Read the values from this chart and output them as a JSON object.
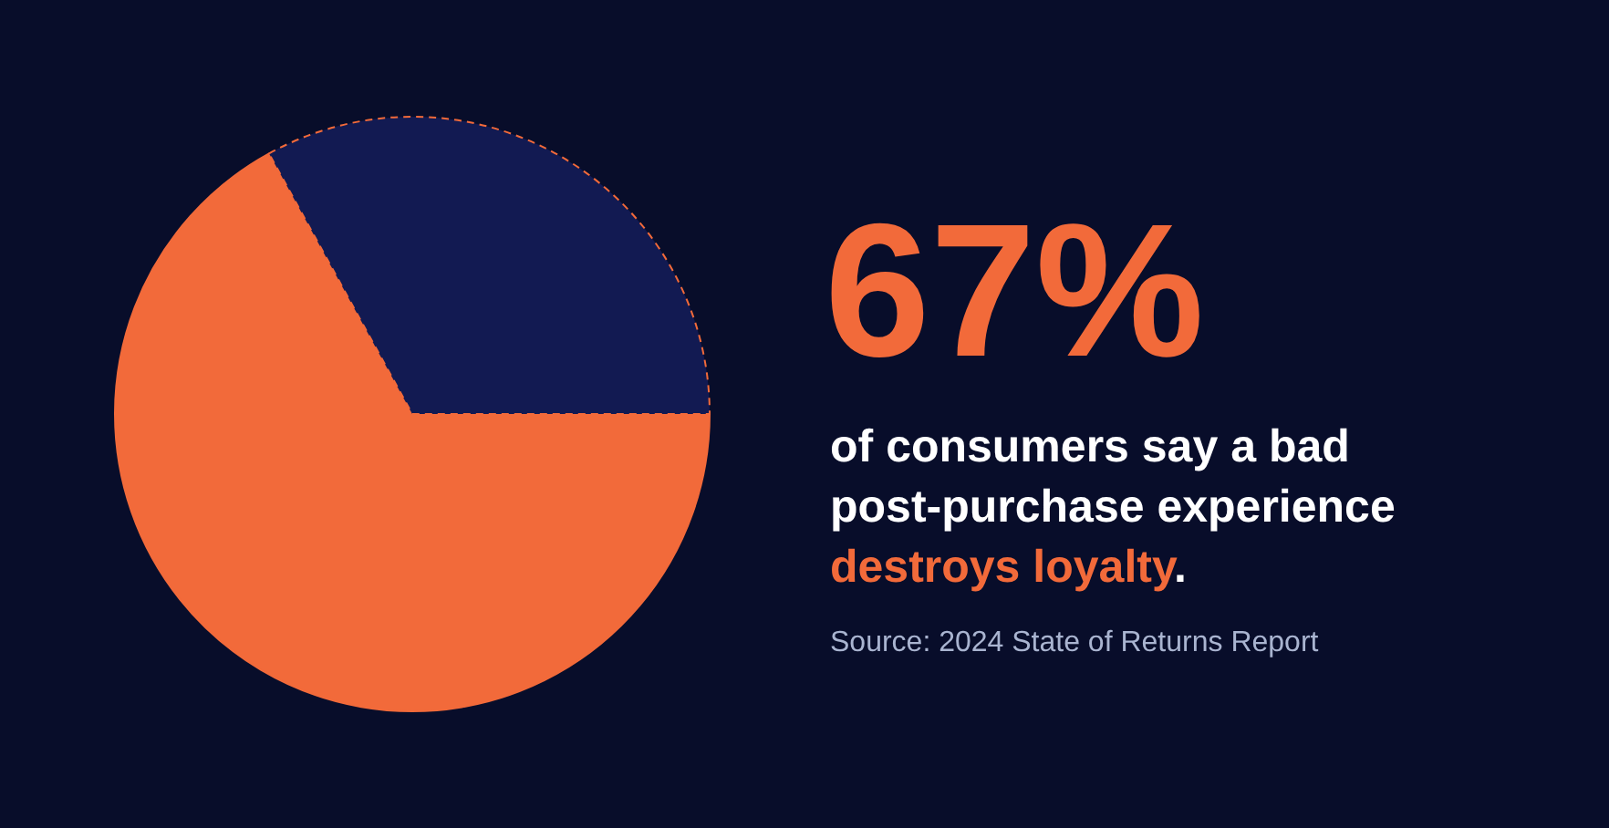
{
  "chart_data": {
    "type": "pie",
    "title": "67%",
    "subtitle": "of consumers say a bad post-purchase experience destroys loyalty.",
    "categories": [
      null,
      null
    ],
    "values": [
      67,
      33
    ],
    "colors": [
      "#f26a3a",
      "#121a52"
    ],
    "annotations": [
      "Source: 2024 State of Returns Report"
    ]
  }
}
